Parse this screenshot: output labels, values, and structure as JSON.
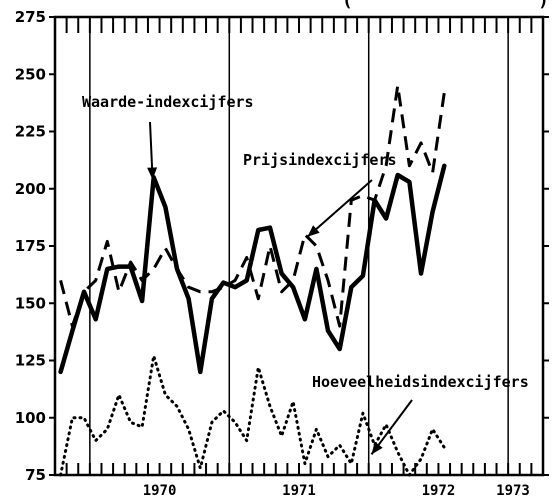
{
  "chart_data": {
    "type": "line",
    "title": "",
    "xlabel": "",
    "ylabel": "",
    "ylim": [
      75,
      275
    ],
    "yticks": [
      75,
      100,
      125,
      150,
      175,
      200,
      225,
      250,
      275
    ],
    "ytick_labels": [
      "75",
      "100",
      "125",
      "150",
      "175",
      "200",
      "225",
      "250",
      "275"
    ],
    "xlim": [
      1969.75,
      1973.25
    ],
    "year_labels": [
      {
        "x": 1970,
        "label": "1970"
      },
      {
        "x": 1971,
        "label": "1971"
      },
      {
        "x": 1972,
        "label": "1972"
      },
      {
        "x": 1973,
        "label": "1973"
      }
    ],
    "grid": "vertical year lines, monthly tick marks",
    "series": [
      {
        "name": "Waarde-indexcijfers",
        "style": "solid",
        "points": [
          [
            1969.79,
            120
          ],
          [
            1969.875,
            138
          ],
          [
            1969.958,
            155
          ],
          [
            1970.042,
            143
          ],
          [
            1970.125,
            165
          ],
          [
            1970.208,
            166
          ],
          [
            1970.292,
            166
          ],
          [
            1970.375,
            151
          ],
          [
            1970.458,
            205
          ],
          [
            1970.542,
            192
          ],
          [
            1970.625,
            165
          ],
          [
            1970.708,
            152
          ],
          [
            1970.792,
            120
          ],
          [
            1970.875,
            152
          ],
          [
            1970.958,
            159
          ],
          [
            1971.042,
            157
          ],
          [
            1971.125,
            160
          ],
          [
            1971.208,
            182
          ],
          [
            1971.292,
            183
          ],
          [
            1971.375,
            163
          ],
          [
            1971.458,
            157
          ],
          [
            1971.542,
            143
          ],
          [
            1971.625,
            165
          ],
          [
            1971.708,
            138
          ],
          [
            1971.792,
            130
          ],
          [
            1971.875,
            157
          ],
          [
            1971.958,
            162
          ],
          [
            1972.042,
            195
          ],
          [
            1972.125,
            187
          ],
          [
            1972.208,
            206
          ],
          [
            1972.292,
            203
          ],
          [
            1972.375,
            163
          ],
          [
            1972.458,
            190
          ],
          [
            1972.542,
            210
          ]
        ]
      },
      {
        "name": "Prijsindexcijfers",
        "style": "dashed",
        "points": [
          [
            1969.79,
            160
          ],
          [
            1969.875,
            140
          ],
          [
            1969.958,
            155
          ],
          [
            1970.042,
            160
          ],
          [
            1970.125,
            177
          ],
          [
            1970.208,
            155
          ],
          [
            1970.292,
            168
          ],
          [
            1970.375,
            160
          ],
          [
            1970.458,
            165
          ],
          [
            1970.542,
            174
          ],
          [
            1970.625,
            165
          ],
          [
            1970.708,
            157
          ],
          [
            1970.792,
            155
          ],
          [
            1970.875,
            155
          ],
          [
            1970.958,
            157
          ],
          [
            1971.042,
            160
          ],
          [
            1971.125,
            170
          ],
          [
            1971.208,
            152
          ],
          [
            1971.292,
            175
          ],
          [
            1971.375,
            155
          ],
          [
            1971.458,
            160
          ],
          [
            1971.542,
            180
          ],
          [
            1971.625,
            175
          ],
          [
            1971.708,
            160
          ],
          [
            1971.792,
            140
          ],
          [
            1971.875,
            195
          ],
          [
            1971.958,
            197
          ],
          [
            1972.042,
            195
          ],
          [
            1972.125,
            210
          ],
          [
            1972.208,
            245
          ],
          [
            1972.292,
            210
          ],
          [
            1972.375,
            220
          ],
          [
            1972.458,
            207
          ],
          [
            1972.542,
            242
          ]
        ]
      },
      {
        "name": "Hoeveelheidsindexcijfers",
        "style": "dotted",
        "points": [
          [
            1969.79,
            75
          ],
          [
            1969.875,
            100
          ],
          [
            1969.958,
            100
          ],
          [
            1970.042,
            90
          ],
          [
            1970.125,
            95
          ],
          [
            1970.208,
            110
          ],
          [
            1970.292,
            98
          ],
          [
            1970.375,
            96
          ],
          [
            1970.458,
            127
          ],
          [
            1970.542,
            110
          ],
          [
            1970.625,
            105
          ],
          [
            1970.708,
            95
          ],
          [
            1970.792,
            78
          ],
          [
            1970.875,
            98
          ],
          [
            1970.958,
            103
          ],
          [
            1971.042,
            98
          ],
          [
            1971.125,
            90
          ],
          [
            1971.208,
            122
          ],
          [
            1971.292,
            105
          ],
          [
            1971.375,
            92
          ],
          [
            1971.458,
            107
          ],
          [
            1971.542,
            80
          ],
          [
            1971.625,
            95
          ],
          [
            1971.708,
            83
          ],
          [
            1971.792,
            88
          ],
          [
            1971.875,
            80
          ],
          [
            1971.958,
            102
          ],
          [
            1972.042,
            88
          ],
          [
            1972.125,
            97
          ],
          [
            1972.208,
            85
          ],
          [
            1972.292,
            75
          ],
          [
            1972.375,
            82
          ],
          [
            1972.458,
            95
          ],
          [
            1972.542,
            87
          ]
        ]
      }
    ],
    "annotations": [
      {
        "text": "Waarde-indexcijfers",
        "series": 0,
        "arrow_to": [
          1970.45,
          204
        ]
      },
      {
        "text": "Prijsindexcijfers",
        "series": 1,
        "arrow_to": [
          1971.56,
          179
        ]
      },
      {
        "text": "Hoeveelheidsindexcijfers",
        "series": 2,
        "arrow_to": [
          1972.02,
          84
        ]
      }
    ]
  }
}
